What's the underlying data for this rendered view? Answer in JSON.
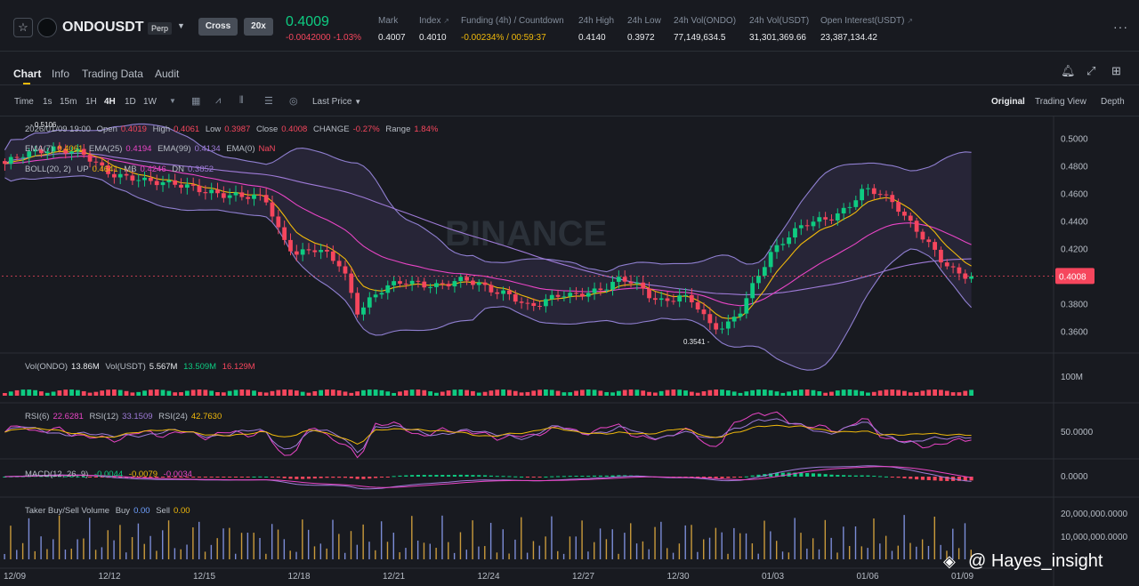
{
  "header": {
    "symbol": "ONDOUSDT",
    "perp_label": "Perp",
    "margin_mode": "Cross",
    "leverage": "20x",
    "last_price": "0.4009",
    "change": "-0.0042000 -1.03%",
    "stats": [
      {
        "label": "Mark",
        "value": "0.4007"
      },
      {
        "label": "Index",
        "value": "0.4010"
      },
      {
        "label": "Funding (4h) / Countdown",
        "value": "-0.00234% / 00:59:37"
      },
      {
        "label": "24h High",
        "value": "0.4140"
      },
      {
        "label": "24h Low",
        "value": "0.3972"
      },
      {
        "label": "24h Vol(ONDO)",
        "value": "77,149,634.5"
      },
      {
        "label": "24h Vol(USDT)",
        "value": "31,301,369.66"
      },
      {
        "label": "Open Interest(USDT)",
        "value": "23,387,134.42"
      }
    ]
  },
  "tabs": [
    "Chart",
    "Info",
    "Trading Data",
    "Audit"
  ],
  "toolbar": {
    "time_label": "Time",
    "intervals": [
      "1s",
      "15m",
      "1H",
      "4H",
      "1D",
      "1W"
    ],
    "active_interval": "4H",
    "price_type": "Last Price",
    "views": [
      "Original",
      "Trading View",
      "Depth"
    ]
  },
  "overlays": {
    "ohlc": {
      "date": "2026/01/09 19:00",
      "open_label": "Open",
      "open": "0.4019",
      "high_label": "High",
      "high": "0.4061",
      "low_label": "Low",
      "low": "0.3987",
      "close_label": "Close",
      "close": "0.4008",
      "change_label": "CHANGE",
      "change": "-0.27%",
      "range_label": "Range",
      "range": "1.84%"
    },
    "ema": {
      "ema7_label": "EMA(7)",
      "ema7": "0.4061",
      "ema25_label": "EMA(25)",
      "ema25": "0.4194",
      "ema99_label": "EMA(99)",
      "ema99": "0.4134",
      "ema0_label": "EMA(0)",
      "ema0": "NaN"
    },
    "boll": {
      "label": "BOLL(20, 2)",
      "up_label": "UP",
      "up": "0.4641",
      "mb_label": "MB",
      "mb": "0.4246",
      "dn_label": "DN",
      "dn": "0.3852"
    },
    "vol": {
      "label_base": "Vol(ONDO)",
      "base": "13.86M",
      "label_quote": "Vol(USDT)",
      "quote": "5.567M",
      "v1": "13.509M",
      "v2": "16.129M"
    },
    "rsi": {
      "rsi6_label": "RSI(6)",
      "rsi6": "22.6281",
      "rsi12_label": "RSI(12)",
      "rsi12": "33.1509",
      "rsi24_label": "RSI(24)",
      "rsi24": "42.7630"
    },
    "macd": {
      "label": "MACD(12, 26, 9)",
      "dif": "-0.0044",
      "dea": "-0.0079",
      "hist": "-0.0034"
    },
    "taker": {
      "label": "Taker Buy/Sell Volume",
      "buy_label": "Buy",
      "buy": "0.00",
      "sell_label": "Sell",
      "sell": "0.00"
    }
  },
  "chart_data": {
    "type": "candlestick",
    "x_labels": [
      "12/09",
      "12/12",
      "12/15",
      "12/18",
      "12/21",
      "12/24",
      "12/27",
      "12/30",
      "01/03",
      "01/06",
      "01/09"
    ],
    "price_axis": [
      "0.5000",
      "0.4800",
      "0.4600",
      "0.4400",
      "0.4200",
      "0.4000",
      "0.3800",
      "0.3600"
    ],
    "ylim": [
      0.345,
      0.515
    ],
    "current_price": "0.4008",
    "high_marker": "0.5106",
    "low_marker": "0.3541",
    "close_path": [
      [
        0,
        0.482
      ],
      [
        3,
        0.495
      ],
      [
        5,
        0.488
      ],
      [
        7,
        0.476
      ],
      [
        9,
        0.468
      ],
      [
        11,
        0.47
      ],
      [
        13,
        0.46
      ],
      [
        15,
        0.461
      ],
      [
        17,
        0.455
      ],
      [
        18,
        0.43
      ],
      [
        19,
        0.418
      ],
      [
        20,
        0.42
      ],
      [
        21,
        0.415
      ],
      [
        22,
        0.408
      ],
      [
        23,
        0.376
      ],
      [
        24,
        0.385
      ],
      [
        25,
        0.392
      ],
      [
        26,
        0.398
      ],
      [
        27,
        0.397
      ],
      [
        28,
        0.392
      ],
      [
        29,
        0.394
      ],
      [
        30,
        0.4
      ],
      [
        31,
        0.396
      ],
      [
        32,
        0.388
      ],
      [
        33,
        0.385
      ],
      [
        34,
        0.38
      ],
      [
        35,
        0.383
      ],
      [
        36,
        0.386
      ],
      [
        37,
        0.385
      ],
      [
        38,
        0.39
      ],
      [
        39,
        0.393
      ],
      [
        40,
        0.397
      ],
      [
        41,
        0.395
      ],
      [
        42,
        0.388
      ],
      [
        43,
        0.383
      ],
      [
        44,
        0.385
      ],
      [
        45,
        0.38
      ],
      [
        46,
        0.366
      ],
      [
        47,
        0.365
      ],
      [
        48,
        0.375
      ],
      [
        49,
        0.398
      ],
      [
        50,
        0.42
      ],
      [
        51,
        0.43
      ],
      [
        52,
        0.436
      ],
      [
        53,
        0.44
      ],
      [
        54,
        0.445
      ],
      [
        55,
        0.452
      ],
      [
        56,
        0.462
      ],
      [
        57,
        0.46
      ],
      [
        58,
        0.455
      ],
      [
        59,
        0.44
      ],
      [
        60,
        0.425
      ],
      [
        61,
        0.412
      ],
      [
        62,
        0.405
      ],
      [
        63,
        0.4008
      ]
    ],
    "volume_axis": "100M",
    "rsi_axis": "50.0000",
    "macd_axis": "0.0000",
    "taker_axis": [
      "20,000,000.0000",
      "10,000,000.0000"
    ]
  },
  "watermark": {
    "logo_text": "BINANCE",
    "handle": "@ Hayes_insight"
  },
  "colors": {
    "up": "#0ecb81",
    "down": "#f6465d",
    "ema7": "#f0b90b",
    "ema25": "#e845c5",
    "ema99": "#9f7bd8",
    "background": "#181a20"
  }
}
